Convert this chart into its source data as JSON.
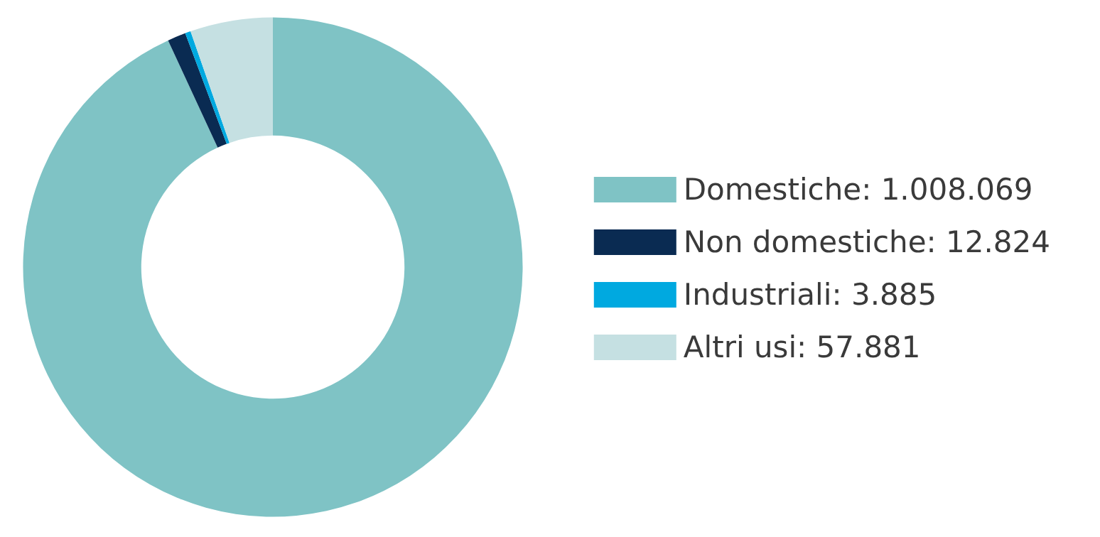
{
  "chart_data": {
    "type": "donut",
    "categories": [
      "Domestiche",
      "Non domestiche",
      "Industriali",
      "Altri usi"
    ],
    "values": [
      1008069,
      12824,
      3885,
      57881
    ],
    "value_labels": [
      "1.008.069",
      "12.824",
      "3.885",
      "57.881"
    ],
    "colors": [
      "#7fc3c5",
      "#0a2b52",
      "#00a9e0",
      "#c5e0e2"
    ],
    "legend": "right"
  }
}
